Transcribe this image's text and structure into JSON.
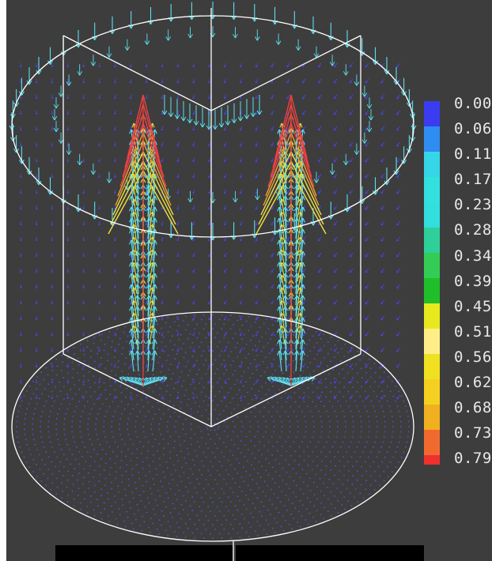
{
  "colorbar": {
    "ticks": [
      "0.00",
      "0.06",
      "0.11",
      "0.17",
      "0.23",
      "0.28",
      "0.34",
      "0.39",
      "0.45",
      "0.51",
      "0.56",
      "0.62",
      "0.68",
      "0.73",
      "0.79"
    ],
    "colors": [
      "#3b3cf0",
      "#2f8cf0",
      "#36d6e8",
      "#33e0e0",
      "#33dede",
      "#2fcf9a",
      "#33cc55",
      "#1fbf2a",
      "#e8e81e",
      "#ffee88",
      "#f0e020",
      "#f5d020",
      "#f0b020",
      "#f06a30",
      "#f03030"
    ]
  },
  "palette": {
    "vector_blue": "#4a46f0",
    "vector_cyan": "#5ce0f0",
    "vector_yellow": "#f0e040",
    "vector_red": "#f04040",
    "outline": "#ffffff",
    "background": "#3d3d3d"
  }
}
